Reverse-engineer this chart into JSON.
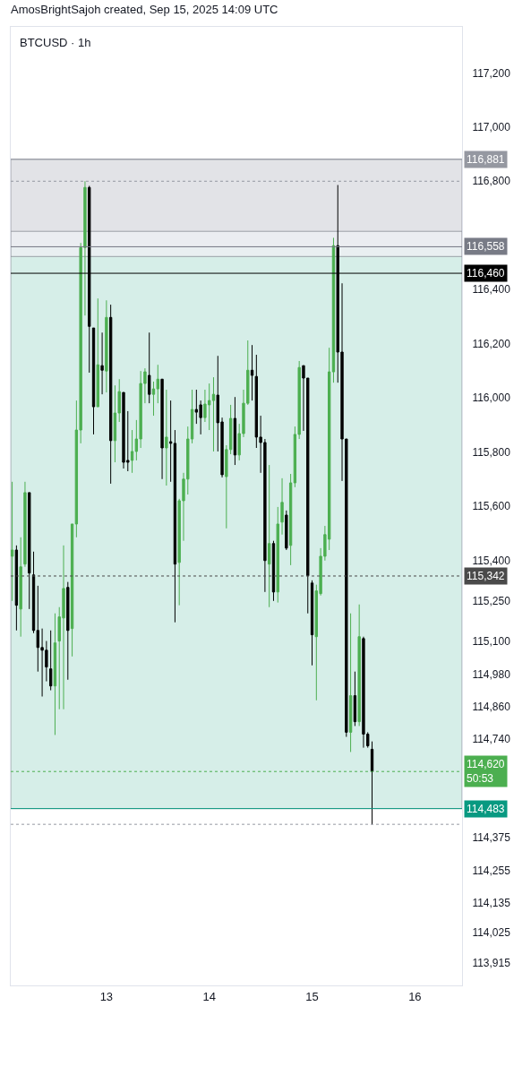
{
  "chart_data": {
    "type": "candlestick",
    "title": "BTCUSD · 1h",
    "annotations": [
      "AmosBrightSajoh created, Sep 15, 2025 14:09 UTC"
    ],
    "colors": [
      "#4caf50",
      "#000000",
      "#4caf50",
      "#4caf50",
      "#000000",
      "#000000",
      "#000000",
      "#000000",
      "#000000",
      "#000000",
      "#4caf50",
      "#4caf50",
      "#4caf50",
      "#000000",
      "#4caf50",
      "#4caf50",
      "#4caf50",
      "#4caf50",
      "#000000",
      "#000000",
      "#4caf50",
      "#000000",
      "#4caf50",
      "#000000",
      "#4caf50",
      "#4caf50",
      "#000000",
      "#000000",
      "#4caf50",
      "#4caf50",
      "#4caf50",
      "#4caf50",
      "#000000",
      "#4caf50",
      "#4caf50",
      "#000000",
      "#4caf50",
      "#000000",
      "#000000",
      "#4caf50",
      "#4caf50",
      "#4caf50",
      "#4caf50",
      "#000000",
      "#000000",
      "#4caf50",
      "#4caf50",
      "#4caf50",
      "#000000",
      "#000000",
      "#4caf50",
      "#4caf50",
      "#000000",
      "#4caf50",
      "#4caf50",
      "#4caf50",
      "#000000",
      "#000000",
      "#000000",
      "#000000",
      "#4caf50",
      "#000000",
      "#4caf50",
      "#4caf50",
      "#000000",
      "#4caf50",
      "#4caf50",
      "#4caf50",
      "#000000",
      "#000000",
      "#000000",
      "#4caf50",
      "#4caf50",
      "#4caf50",
      "#4caf50",
      "#4caf50",
      "#000000",
      "#000000",
      "#000000",
      "#4caf50",
      "#000000",
      "#4caf50",
      "#000000",
      "#000000",
      "#000000"
    ],
    "x": [
      "2025-09-12T02:00",
      "2025-09-12T03:00",
      "2025-09-12T04:00",
      "2025-09-12T05:00",
      "2025-09-12T06:00",
      "2025-09-12T07:00",
      "2025-09-12T08:00",
      "2025-09-12T09:00",
      "2025-09-12T10:00",
      "2025-09-12T11:00",
      "2025-09-12T12:00",
      "2025-09-12T13:00",
      "2025-09-12T14:00",
      "2025-09-12T15:00",
      "2025-09-12T16:00",
      "2025-09-12T17:00",
      "2025-09-12T18:00",
      "2025-09-12T19:00",
      "2025-09-12T20:00",
      "2025-09-12T21:00",
      "2025-09-12T22:00",
      "2025-09-12T23:00",
      "2025-09-13T00:00",
      "2025-09-13T01:00",
      "2025-09-13T02:00",
      "2025-09-13T03:00",
      "2025-09-13T04:00",
      "2025-09-13T05:00",
      "2025-09-13T06:00",
      "2025-09-13T07:00",
      "2025-09-13T08:00",
      "2025-09-13T09:00",
      "2025-09-13T10:00",
      "2025-09-13T11:00",
      "2025-09-13T12:00",
      "2025-09-13T13:00",
      "2025-09-13T14:00",
      "2025-09-13T15:00",
      "2025-09-13T16:00",
      "2025-09-13T17:00",
      "2025-09-13T18:00",
      "2025-09-13T19:00",
      "2025-09-13T20:00",
      "2025-09-13T21:00",
      "2025-09-13T22:00",
      "2025-09-13T23:00",
      "2025-09-14T00:00",
      "2025-09-14T01:00",
      "2025-09-14T02:00",
      "2025-09-14T03:00",
      "2025-09-14T04:00",
      "2025-09-14T05:00",
      "2025-09-14T06:00",
      "2025-09-14T07:00",
      "2025-09-14T08:00",
      "2025-09-14T09:00",
      "2025-09-14T10:00",
      "2025-09-14T11:00",
      "2025-09-14T12:00",
      "2025-09-14T13:00",
      "2025-09-14T14:00",
      "2025-09-14T15:00",
      "2025-09-14T16:00",
      "2025-09-14T17:00",
      "2025-09-14T18:00",
      "2025-09-14T19:00",
      "2025-09-14T20:00",
      "2025-09-14T21:00",
      "2025-09-14T22:00",
      "2025-09-14T23:00",
      "2025-09-15T00:00",
      "2025-09-15T01:00",
      "2025-09-15T02:00",
      "2025-09-15T03:00",
      "2025-09-15T04:00",
      "2025-09-15T05:00",
      "2025-09-15T06:00",
      "2025-09-15T07:00",
      "2025-09-15T08:00",
      "2025-09-15T09:00",
      "2025-09-15T10:00",
      "2025-09-15T11:00",
      "2025-09-15T12:00",
      "2025-09-15T13:00",
      "2025-09-15T14:00"
    ],
    "ohlc": [
      [
        115415,
        115690,
        115250,
        115438
      ],
      [
        115438,
        115455,
        115141,
        115234
      ],
      [
        115220,
        115485,
        115118,
        115376
      ],
      [
        115386,
        115690,
        115376,
        115650
      ],
      [
        115650,
        115650,
        115220,
        115353
      ],
      [
        115346,
        115432,
        115131,
        115141
      ],
      [
        115141,
        115306,
        114989,
        115078
      ],
      [
        115078,
        115148,
        114897,
        115068
      ],
      [
        115068,
        115102,
        114953,
        115006
      ],
      [
        114999,
        115141,
        114920,
        114936
      ],
      [
        114936,
        115204,
        114755,
        115095
      ],
      [
        115102,
        115227,
        114850,
        115191
      ],
      [
        115187,
        115455,
        114850,
        115296
      ],
      [
        115300,
        115320,
        114959,
        115141
      ],
      [
        115148,
        115534,
        115045,
        115534
      ],
      [
        115534,
        115990,
        115485,
        115881
      ],
      [
        115881,
        116572,
        115832,
        116555
      ],
      [
        116555,
        116800,
        116304,
        116777
      ],
      [
        116777,
        116783,
        116093,
        116264
      ],
      [
        116258,
        116258,
        115865,
        115967
      ],
      [
        115967,
        116367,
        115967,
        116122
      ],
      [
        116119,
        116241,
        116013,
        116102
      ],
      [
        116099,
        116360,
        116020,
        116297
      ],
      [
        116297,
        116344,
        115683,
        115842
      ],
      [
        115842,
        116046,
        115762,
        115944
      ],
      [
        115944,
        116069,
        115911,
        116023
      ],
      [
        116020,
        116020,
        115739,
        115762
      ],
      [
        115769,
        115951,
        115729,
        115762
      ],
      [
        115769,
        115881,
        115723,
        115802
      ],
      [
        115802,
        115918,
        115769,
        115848
      ],
      [
        115848,
        116099,
        115815,
        116053
      ],
      [
        116053,
        116109,
        115980,
        116096
      ],
      [
        116083,
        116241,
        115980,
        116013
      ],
      [
        116013,
        116060,
        115934,
        116033
      ],
      [
        116033,
        116122,
        115980,
        116069
      ],
      [
        116069,
        116069,
        115700,
        115815
      ],
      [
        115815,
        116030,
        115676,
        115855
      ],
      [
        115838,
        115990,
        115690,
        115832
      ],
      [
        115832,
        115881,
        115171,
        115386
      ],
      [
        115392,
        115627,
        115234,
        115620
      ],
      [
        115620,
        115723,
        115472,
        115700
      ],
      [
        115700,
        115894,
        115643,
        115848
      ],
      [
        115848,
        116030,
        115832,
        115957
      ],
      [
        115957,
        116030,
        115904,
        115947
      ],
      [
        115974,
        115990,
        115865,
        115927
      ],
      [
        115927,
        116030,
        115911,
        115977
      ],
      [
        115974,
        116053,
        115881,
        115990
      ],
      [
        115990,
        116076,
        115802,
        116013
      ],
      [
        116010,
        116155,
        115802,
        115908
      ],
      [
        115911,
        115927,
        115706,
        115716
      ],
      [
        115709,
        115825,
        115518,
        115809
      ],
      [
        115809,
        115974,
        115792,
        115924
      ],
      [
        115924,
        116003,
        115752,
        115789
      ],
      [
        115789,
        115904,
        115769,
        115868
      ],
      [
        115868,
        116030,
        115855,
        115980
      ],
      [
        115980,
        116212,
        115974,
        116102
      ],
      [
        116102,
        116195,
        115990,
        116083
      ],
      [
        116079,
        116159,
        115815,
        115855
      ],
      [
        115855,
        115934,
        115723,
        115835
      ],
      [
        115835,
        115848,
        115283,
        115399
      ],
      [
        115386,
        115752,
        115227,
        115462
      ],
      [
        115462,
        115472,
        115250,
        115283
      ],
      [
        115283,
        115597,
        115244,
        115534
      ],
      [
        115541,
        115703,
        115495,
        115614
      ],
      [
        115567,
        115584,
        115438,
        115445
      ],
      [
        115455,
        115719,
        115382,
        115686
      ],
      [
        115686,
        115894,
        115670,
        115865
      ],
      [
        115865,
        116136,
        115848,
        116112
      ],
      [
        116119,
        116119,
        115878,
        116073
      ],
      [
        116073,
        116073,
        115204,
        115343
      ],
      [
        115316,
        115326,
        115012,
        115125
      ],
      [
        115118,
        115310,
        114883,
        115287
      ],
      [
        115277,
        115445,
        115270,
        115415
      ],
      [
        115415,
        115527,
        115399,
        115495
      ],
      [
        115478,
        116185,
        115438,
        116096
      ],
      [
        116096,
        116591,
        116056,
        116562
      ],
      [
        116562,
        116786,
        116056,
        116169
      ],
      [
        116169,
        116423,
        115693,
        115848
      ],
      [
        115848,
        115848,
        114748,
        114765
      ],
      [
        114765,
        115204,
        114692,
        114900
      ],
      [
        114900,
        114989,
        114788,
        114804
      ],
      [
        114804,
        115237,
        114788,
        115118
      ],
      [
        115111,
        115118,
        114708,
        114758
      ],
      [
        114758,
        114765,
        114708,
        114715
      ],
      [
        114702,
        114731,
        114425,
        114620
      ]
    ],
    "xlim": [
      "2025-09-12T01:40",
      "2025-09-16T11:00"
    ],
    "xticks": [
      {
        "value": "2025-09-13",
        "label": "13"
      },
      {
        "value": "2025-09-14",
        "label": "14"
      },
      {
        "value": "2025-09-15",
        "label": "15"
      },
      {
        "value": "2025-09-16",
        "label": "16"
      }
    ],
    "ylim": [
      113830,
      117370
    ],
    "yticks": [
      {
        "value": 117200,
        "label": "117,200"
      },
      {
        "value": 117000,
        "label": "117,000"
      },
      {
        "value": 116800,
        "label": "116,800"
      },
      {
        "value": 116400,
        "label": "116,400"
      },
      {
        "value": 116200,
        "label": "116,200"
      },
      {
        "value": 116000,
        "label": "116,000"
      },
      {
        "value": 115800,
        "label": "115,800"
      },
      {
        "value": 115600,
        "label": "115,600"
      },
      {
        "value": 115400,
        "label": "115,400"
      },
      {
        "value": 115250,
        "label": "115,250"
      },
      {
        "value": 115100,
        "label": "115,100"
      },
      {
        "value": 114980,
        "label": "114,980"
      },
      {
        "value": 114860,
        "label": "114,860"
      },
      {
        "value": 114740,
        "label": "114,740"
      },
      {
        "value": 114375,
        "label": "114,375"
      },
      {
        "value": 114255,
        "label": "114,255"
      },
      {
        "value": 114135,
        "label": "114,135"
      },
      {
        "value": 114025,
        "label": "114,025"
      },
      {
        "value": 113915,
        "label": "113,915"
      }
    ],
    "bands": [
      {
        "axis": "y",
        "from": 116558,
        "to": 116881,
        "color": "#dcdde2"
      },
      {
        "axis": "y",
        "from": 114483,
        "to": 116558,
        "color": "#cdeae3"
      },
      {
        "axis": "y",
        "from": 116522,
        "to": 116615,
        "color": "#eef0f4"
      }
    ],
    "ref_lines": [
      {
        "axis": "y",
        "value": 116800,
        "label": null,
        "color": "#9598a1",
        "line_style": "dotted"
      },
      {
        "axis": "y",
        "value": 114620,
        "label": "114,620\n50:53",
        "color": "#4caf50",
        "line_style": "dotted"
      },
      {
        "axis": "y",
        "value": 114425,
        "label": null,
        "color": "#9598a1",
        "line_style": "dotted"
      },
      {
        "axis": "y",
        "value": 116460,
        "label": "116,460",
        "color": "#000000",
        "line_style": "solid"
      },
      {
        "axis": "y",
        "value": 116881,
        "label": "116,881",
        "color": "#9598a1",
        "line_style": "solid"
      },
      {
        "axis": "y",
        "value": 116558,
        "label": "116,558",
        "color": "#787b86",
        "line_style": "solid"
      },
      {
        "axis": "y",
        "value": 115342,
        "label": "115,342",
        "color": "#4a4a4a",
        "line_style": "dotted"
      },
      {
        "axis": "y",
        "value": 114483,
        "label": "114,483",
        "color": "#089981",
        "line_style": "solid"
      }
    ]
  }
}
